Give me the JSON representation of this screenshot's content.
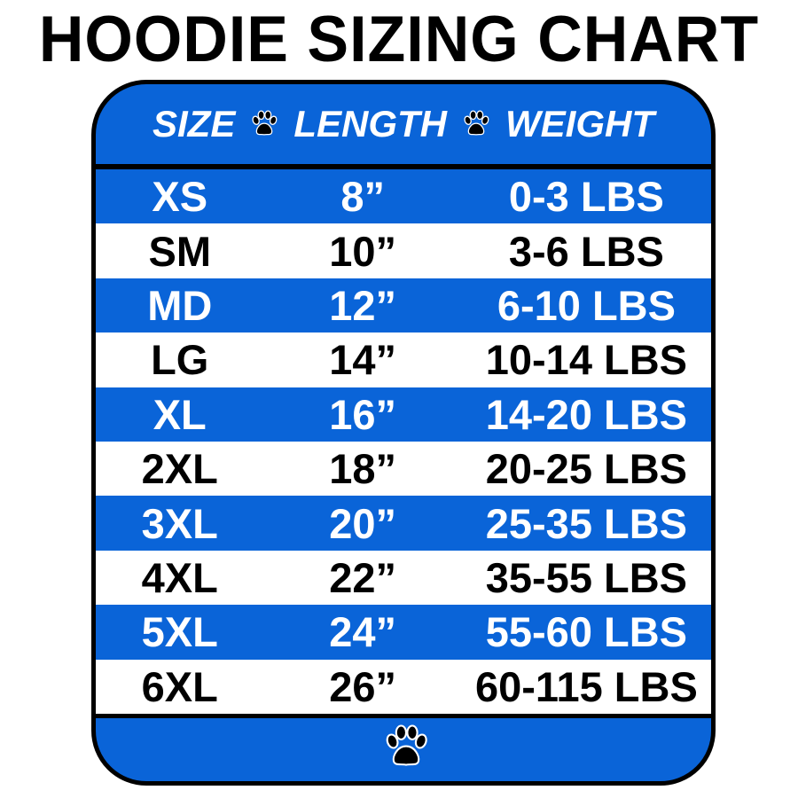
{
  "title": "HOODIE SIZING CHART",
  "colors": {
    "blue": "#0a64d8",
    "white": "#ffffff",
    "black": "#000000"
  },
  "header": {
    "size": "SIZE",
    "length": "LENGTH",
    "weight": "WEIGHT",
    "separator_icon": "paw-print-icon"
  },
  "rows": [
    {
      "size": "XS",
      "length": "8”",
      "weight": "0-3 LBS"
    },
    {
      "size": "SM",
      "length": "10”",
      "weight": "3-6 LBS"
    },
    {
      "size": "MD",
      "length": "12”",
      "weight": "6-10 LBS"
    },
    {
      "size": "LG",
      "length": "14”",
      "weight": "10-14 LBS"
    },
    {
      "size": "XL",
      "length": "16”",
      "weight": "14-20 LBS"
    },
    {
      "size": "2XL",
      "length": "18”",
      "weight": "20-25 LBS"
    },
    {
      "size": "3XL",
      "length": "20”",
      "weight": "25-35 LBS"
    },
    {
      "size": "4XL",
      "length": "22”",
      "weight": "35-55 LBS"
    },
    {
      "size": "5XL",
      "length": "24”",
      "weight": "55-60 LBS"
    },
    {
      "size": "6XL",
      "length": "26”",
      "weight": "60-115 LBS"
    }
  ],
  "footer": {
    "icon": "paw-print-icon"
  }
}
